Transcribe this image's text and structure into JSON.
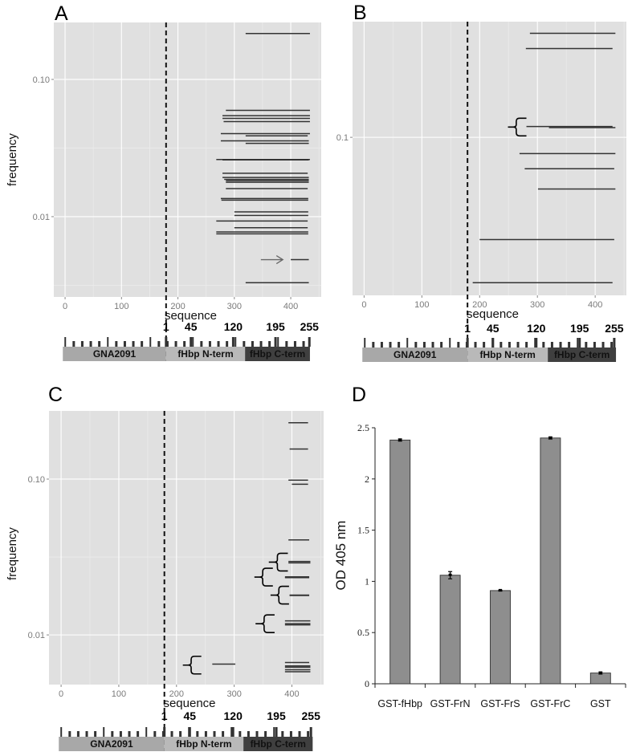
{
  "chart_data": [
    {
      "panel_label": "A",
      "type": "segment",
      "xlabel": "sequence",
      "ylabel": "frequency",
      "xlim": [
        -20,
        454
      ],
      "ylim": [
        0.0026,
        0.26
      ],
      "y_scale": "log",
      "x_ticks": [
        "0",
        "100",
        "200",
        "300",
        "400"
      ],
      "y_ticks": [
        {
          "value": 0.1,
          "label": "0.10"
        },
        {
          "value": 0.01,
          "label": "0.01"
        }
      ],
      "grid": true,
      "background": "#e0e0e0",
      "divider_x": 179,
      "segments": [
        {
          "x": [
            320,
            434
          ],
          "y": 0.216
        },
        {
          "x": [
            285,
            434
          ],
          "y": 0.0595
        },
        {
          "x": [
            279,
            434
          ],
          "y": 0.0544
        },
        {
          "x": [
            279,
            434
          ],
          "y": 0.052
        },
        {
          "x": [
            281,
            434
          ],
          "y": 0.0493
        },
        {
          "x": [
            276,
            434
          ],
          "y": 0.0403
        },
        {
          "x": [
            320,
            430
          ],
          "y": 0.0388
        },
        {
          "x": [
            276,
            432
          ],
          "y": 0.0357
        },
        {
          "x": [
            320,
            432
          ],
          "y": 0.0342
        },
        {
          "x": [
            268,
            434
          ],
          "y": 0.0261
        },
        {
          "x": [
            279,
            432
          ],
          "y": 0.0259
        },
        {
          "x": [
            279,
            430
          ],
          "y": 0.0207
        },
        {
          "x": [
            279,
            432
          ],
          "y": 0.0193
        },
        {
          "x": [
            282,
            432
          ],
          "y": 0.0187
        },
        {
          "x": [
            285,
            432
          ],
          "y": 0.0183
        },
        {
          "x": [
            285,
            432
          ],
          "y": 0.0178
        },
        {
          "x": [
            285,
            430
          ],
          "y": 0.016
        },
        {
          "x": [
            276,
            431
          ],
          "y": 0.01355
        },
        {
          "x": [
            277,
            431
          ],
          "y": 0.0132
        },
        {
          "x": [
            300,
            431
          ],
          "y": 0.01083
        },
        {
          "x": [
            300,
            431
          ],
          "y": 0.0102
        },
        {
          "x": [
            268,
            430
          ],
          "y": 0.0093
        },
        {
          "x": [
            300,
            430
          ],
          "y": 0.0083
        },
        {
          "x": [
            268,
            431
          ],
          "y": 0.00774
        },
        {
          "x": [
            268,
            431
          ],
          "y": 0.0075
        },
        {
          "x": [
            400,
            432
          ],
          "y": 0.00486
        },
        {
          "x": [
            320,
            432
          ],
          "y": 0.0033
        }
      ],
      "arrows": [
        {
          "x": [
            347,
            386
          ],
          "y": 0.00486
        }
      ],
      "brackets": [],
      "gene_map": {
        "residue_labels": [
          {
            "value": 1,
            "label": "1"
          },
          {
            "value": 45,
            "label": "45"
          },
          {
            "value": 120,
            "label": "120"
          },
          {
            "value": 195,
            "label": "195"
          },
          {
            "value": 255,
            "label": "255"
          }
        ],
        "domains": [
          {
            "name": "GNA2091",
            "x": [
              -4,
              179
            ],
            "color": "#a8a8a8"
          },
          {
            "name": "fHbp N-term",
            "x": [
              179,
              319
            ],
            "color": "#b9b9b9"
          },
          {
            "name": "fHbp C-term",
            "x": [
              319,
              434
            ],
            "color": "#3f3f3f"
          }
        ]
      }
    },
    {
      "panel_label": "B",
      "type": "segment",
      "xlabel": "sequence",
      "ylabel": "",
      "xlim": [
        -20,
        454
      ],
      "ylim": [
        0.0286,
        0.25
      ],
      "y_scale": "log",
      "x_ticks": [
        "0",
        "100",
        "200",
        "300",
        "400"
      ],
      "y_ticks": [
        {
          "value": 0.1,
          "label": "0.1"
        }
      ],
      "grid": true,
      "background": "#e0e0e0",
      "divider_x": 179,
      "segments": [
        {
          "x": [
            287,
            435
          ],
          "y": 0.228
        },
        {
          "x": [
            280,
            430
          ],
          "y": 0.202
        },
        {
          "x": [
            281,
            430
          ],
          "y": 0.109
        },
        {
          "x": [
            320,
            435
          ],
          "y": 0.108
        },
        {
          "x": [
            269,
            435
          ],
          "y": 0.0879
        },
        {
          "x": [
            278,
            433
          ],
          "y": 0.078
        },
        {
          "x": [
            301,
            435
          ],
          "y": 0.0664
        },
        {
          "x": [
            200,
            433
          ],
          "y": 0.0445
        },
        {
          "x": [
            188,
            430
          ],
          "y": 0.0316
        }
      ],
      "arrows": [],
      "brackets": [
        {
          "x": [
            249,
            281
          ],
          "y": 0.1085
        }
      ],
      "gene_map": {
        "residue_labels": [
          {
            "value": 1,
            "label": "1"
          },
          {
            "value": 45,
            "label": "45"
          },
          {
            "value": 120,
            "label": "120"
          },
          {
            "value": 195,
            "label": "195"
          },
          {
            "value": 255,
            "label": "255"
          }
        ],
        "domains": [
          {
            "name": "GNA2091",
            "x": [
              -3,
              179
            ],
            "color": "#a8a8a8"
          },
          {
            "name": "fHbp N-term",
            "x": [
              179,
              318
            ],
            "color": "#b9b9b9"
          },
          {
            "name": "fHbp C-term",
            "x": [
              318,
              436
            ],
            "color": "#3f3f3f"
          }
        ]
      }
    },
    {
      "panel_label": "C",
      "type": "segment",
      "xlabel": "sequence",
      "ylabel": "frequency",
      "xlim": [
        -21,
        455
      ],
      "ylim": [
        0.0048,
        0.274
      ],
      "y_scale": "log",
      "x_ticks": [
        "0",
        "100",
        "200",
        "300",
        "400"
      ],
      "y_ticks": [
        {
          "value": 0.1,
          "label": "0.10"
        },
        {
          "value": 0.01,
          "label": "0.01"
        }
      ],
      "grid": true,
      "background": "#e0e0e0",
      "divider_x": 179,
      "segments": [
        {
          "x": [
            394,
            428
          ],
          "y": 0.23
        },
        {
          "x": [
            396,
            428
          ],
          "y": 0.156
        },
        {
          "x": [
            394,
            428
          ],
          "y": 0.0985
        },
        {
          "x": [
            400,
            428
          ],
          "y": 0.0927
        },
        {
          "x": [
            394,
            430
          ],
          "y": 0.0407
        },
        {
          "x": [
            394,
            432
          ],
          "y": 0.0296
        },
        {
          "x": [
            394,
            432
          ],
          "y": 0.029
        },
        {
          "x": [
            388,
            430
          ],
          "y": 0.0236
        },
        {
          "x": [
            388,
            430
          ],
          "y": 0.0233
        },
        {
          "x": [
            396,
            430
          ],
          "y": 0.018
        },
        {
          "x": [
            396,
            430
          ],
          "y": 0.0179
        },
        {
          "x": [
            388,
            432
          ],
          "y": 0.0123
        },
        {
          "x": [
            388,
            432
          ],
          "y": 0.0118
        },
        {
          "x": [
            388,
            432
          ],
          "y": 0.0116
        },
        {
          "x": [
            388,
            430
          ],
          "y": 0.00665
        },
        {
          "x": [
            262,
            302
          ],
          "y": 0.0065
        },
        {
          "x": [
            388,
            432
          ],
          "y": 0.00632
        },
        {
          "x": [
            388,
            432
          ],
          "y": 0.0062
        },
        {
          "x": [
            388,
            432
          ],
          "y": 0.00598
        },
        {
          "x": [
            388,
            432
          ],
          "y": 0.0058
        }
      ],
      "arrows": [],
      "brackets": [
        {
          "x": [
            360,
            393
          ],
          "y": 0.0293
        },
        {
          "x": [
            335,
            367
          ],
          "y": 0.0235
        },
        {
          "x": [
            363,
            395
          ],
          "y": 0.018
        },
        {
          "x": [
            337,
            370
          ],
          "y": 0.0118
        },
        {
          "x": [
            211,
            243
          ],
          "y": 0.0064
        }
      ],
      "gene_map": {
        "residue_labels": [
          {
            "value": 1,
            "label": "1"
          },
          {
            "value": 45,
            "label": "45"
          },
          {
            "value": 120,
            "label": "120"
          },
          {
            "value": 195,
            "label": "195"
          },
          {
            "value": 255,
            "label": "255"
          }
        ],
        "domains": [
          {
            "name": "GNA2091",
            "x": [
              -4,
              179
            ],
            "color": "#a8a8a8"
          },
          {
            "name": "fHbp N-term",
            "x": [
              179,
              316
            ],
            "color": "#b9b9b9"
          },
          {
            "name": "fHbp C-term",
            "x": [
              316,
              436
            ],
            "color": "#3f3f3f"
          }
        ]
      }
    },
    {
      "panel_label": "D",
      "type": "bar",
      "xlabel": "",
      "ylabel": "OD 405 nm",
      "ylim": [
        0,
        2.5
      ],
      "y_ticks": [
        "0",
        "0.5",
        "1",
        "1.5",
        "2",
        "2.5"
      ],
      "categories": [
        "GST-fHbp",
        "GST-FrN",
        "GST-FrS",
        "GST-FrC",
        "GST"
      ],
      "values": [
        2.38,
        1.06,
        0.91,
        2.4,
        0.105
      ],
      "errors": [
        0.01,
        0.035,
        0.005,
        0.01,
        0.01
      ],
      "bar_color": "#8e8e8e",
      "grid": false
    }
  ]
}
